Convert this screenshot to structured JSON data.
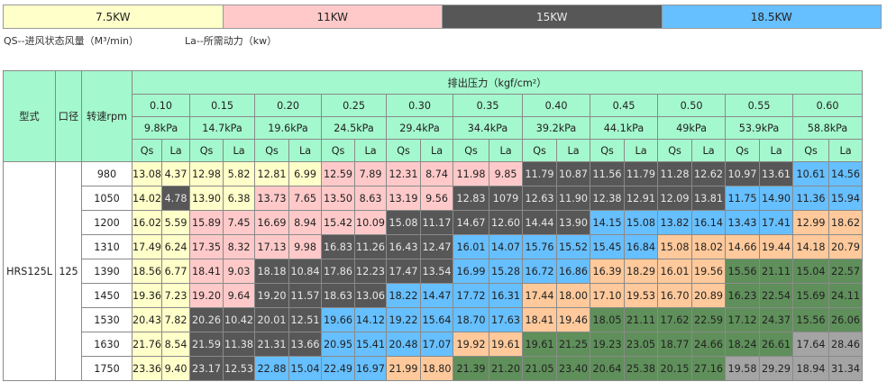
{
  "legend": [
    {
      "label": "7.5KW",
      "color": "#ffffc9"
    },
    {
      "label": "11KW",
      "color": "#ffc9c9"
    },
    {
      "label": "15KW",
      "color": "#575757"
    },
    {
      "label": "18.5KW",
      "color": "#66bfff"
    }
  ],
  "notes": {
    "qs": "QS--进风状态风量（M³/min）",
    "la": "La--所需动力（kw）"
  },
  "header": {
    "model": "型式",
    "bore": "口径",
    "speed": "转速rpm",
    "pressure_title": "排出压力（kgf/cm²）",
    "qs": "Qs",
    "la": "La",
    "pressures": [
      {
        "kgf": "0.10",
        "kpa": "9.8kPa"
      },
      {
        "kgf": "0.15",
        "kpa": "14.7kPa"
      },
      {
        "kgf": "0.20",
        "kpa": "19.6kPa"
      },
      {
        "kgf": "0.25",
        "kpa": "24.5kPa"
      },
      {
        "kgf": "0.30",
        "kpa": "29.4kPa"
      },
      {
        "kgf": "0.35",
        "kpa": "34.4kPa"
      },
      {
        "kgf": "0.40",
        "kpa": "39.2kPa"
      },
      {
        "kgf": "0.45",
        "kpa": "44.1kPa"
      },
      {
        "kgf": "0.50",
        "kpa": "49kPa"
      },
      {
        "kgf": "0.55",
        "kpa": "53.9kPa"
      },
      {
        "kgf": "0.60",
        "kpa": "58.8kPa"
      }
    ]
  },
  "model": "HRS125L",
  "bore": "125",
  "colors": {
    "Y": "#ffffc9",
    "P": "#ffc9c9",
    "D": "#575757",
    "B": "#66bfff",
    "O": "#ffc99b",
    "G": "#5f8f5a",
    "S": "#a4a4a4"
  },
  "rows": [
    {
      "rpm": "980",
      "qs": [
        "13.08",
        "12.98",
        "12.81",
        "12.59",
        "12.31",
        "11.98",
        "11.79",
        "11.56",
        "11.28",
        "10.97",
        "10.61"
      ],
      "la": [
        "4.37",
        "5.82",
        "6.99",
        "7.89",
        "8.74",
        "9.85",
        "10.87",
        "11.79",
        "12.62",
        "13.61",
        "14.56"
      ],
      "fills": [
        "Y",
        "Y",
        "Y",
        "P",
        "P",
        "P",
        "D",
        "D",
        "D",
        "D",
        "B"
      ],
      "split": 0,
      "split_fill": "D"
    },
    {
      "rpm": "1050",
      "qs": [
        "14.02",
        "13.90",
        "13.73",
        "13.50",
        "13.19",
        "12.83",
        "12.63",
        "12.38",
        "12.09",
        "11.75",
        "11.36"
      ],
      "la": [
        "4.78",
        "6.38",
        "7.65",
        "8.63",
        "9.56",
        "1079",
        "11.90",
        "12.91",
        "13.81",
        "14.90",
        "15.94"
      ],
      "fills": [
        "Y",
        "Y",
        "P",
        "P",
        "P",
        "D",
        "D",
        "D",
        "D",
        "B",
        "B"
      ],
      "split": 1,
      "split_fill": "D"
    },
    {
      "rpm": "1200",
      "qs": [
        "16.02",
        "15.89",
        "16.69",
        "15.42",
        "15.08",
        "14.67",
        "14.44",
        "14.15",
        "13.82",
        "13.43",
        "12.99"
      ],
      "la": [
        "5.59",
        "7.45",
        "8.94",
        "10.09",
        "11.17",
        "12.60",
        "13.90",
        "15.08",
        "16.14",
        "17.41",
        "18.62"
      ],
      "fills": [
        "Y",
        "P",
        "P",
        "P",
        "D",
        "D",
        "D",
        "B",
        "B",
        "B",
        "O"
      ],
      "split": 0,
      "split_fill": "D"
    },
    {
      "rpm": "1310",
      "qs": [
        "17.49",
        "17.35",
        "17.13",
        "16.83",
        "16.43",
        "16.01",
        "15.76",
        "15.45",
        "15.08",
        "14.66",
        "14.18"
      ],
      "la": [
        "6.24",
        "8.32",
        "9.98",
        "11.26",
        "12.47",
        "14.07",
        "15.52",
        "16.84",
        "18.02",
        "19.44",
        "20.79"
      ],
      "fills": [
        "Y",
        "P",
        "P",
        "D",
        "D",
        "B",
        "B",
        "B",
        "O",
        "O",
        "O"
      ],
      "split": 0,
      "split_fill": "D"
    },
    {
      "rpm": "1390",
      "qs": [
        "18.56",
        "18.41",
        "18.18",
        "17.86",
        "17.47",
        "16.99",
        "16.72",
        "16.39",
        "16.01",
        "15.56",
        "15.04"
      ],
      "la": [
        "6.77",
        "9.03",
        "10.84",
        "12.23",
        "13.54",
        "15.28",
        "16.86",
        "18.29",
        "19.56",
        "21.11",
        "22.57"
      ],
      "fills": [
        "Y",
        "P",
        "D",
        "D",
        "D",
        "B",
        "B",
        "O",
        "O",
        "G",
        "G"
      ],
      "split": 0,
      "split_fill": "D"
    },
    {
      "rpm": "1450",
      "qs": [
        "19.36",
        "19.20",
        "19.20",
        "18.63",
        "18.22",
        "17.72",
        "17.44",
        "17.10",
        "16.70",
        "16.23",
        "15.69"
      ],
      "la": [
        "7.23",
        "9.64",
        "11.57",
        "13.06",
        "14.47",
        "16.31",
        "18.00",
        "19.53",
        "20.89",
        "22.54",
        "24.11"
      ],
      "fills": [
        "Y",
        "P",
        "D",
        "D",
        "B",
        "B",
        "O",
        "O",
        "O",
        "G",
        "G"
      ],
      "split": 0,
      "split_fill": "D"
    },
    {
      "rpm": "1530",
      "qs": [
        "20.43",
        "20.26",
        "20.01",
        "19.66",
        "19.22",
        "18.70",
        "18.41",
        "18.05",
        "17.62",
        "17.12",
        "15.56"
      ],
      "la": [
        "7.82",
        "10.42",
        "12.51",
        "14.12",
        "15.64",
        "17.63",
        "19.46",
        "21.11",
        "22.59",
        "24.37",
        "26.06"
      ],
      "fills": [
        "Y",
        "D",
        "D",
        "B",
        "B",
        "B",
        "O",
        "G",
        "G",
        "G",
        "G"
      ],
      "split": 0,
      "split_fill": "D"
    },
    {
      "rpm": "1630",
      "qs": [
        "21.76",
        "21.59",
        "21.31",
        "20.95",
        "20.48",
        "19.92",
        "19.61",
        "19.23",
        "18.77",
        "18.24",
        "17.64"
      ],
      "la": [
        "8.54",
        "11.38",
        "13.66",
        "15.41",
        "17.07",
        "19.61",
        "21.25",
        "23.05",
        "24.66",
        "26.61",
        "28.46"
      ],
      "fills": [
        "Y",
        "D",
        "D",
        "B",
        "B",
        "O",
        "G",
        "G",
        "G",
        "G",
        "S"
      ],
      "split": 0,
      "split_fill": "D"
    },
    {
      "rpm": "1750",
      "qs": [
        "23.36",
        "23.17",
        "22.88",
        "22.49",
        "21.99",
        "21.39",
        "21.05",
        "20.64",
        "20.15",
        "19.58",
        "18.94"
      ],
      "la": [
        "9.40",
        "12.53",
        "15.04",
        "16.97",
        "18.80",
        "21.20",
        "23.40",
        "25.38",
        "27.16",
        "29.29",
        "31.34"
      ],
      "fills": [
        "Y",
        "D",
        "B",
        "B",
        "O",
        "G",
        "G",
        "G",
        "G",
        "S",
        "S"
      ],
      "split": 0,
      "split_fill": "D"
    }
  ]
}
